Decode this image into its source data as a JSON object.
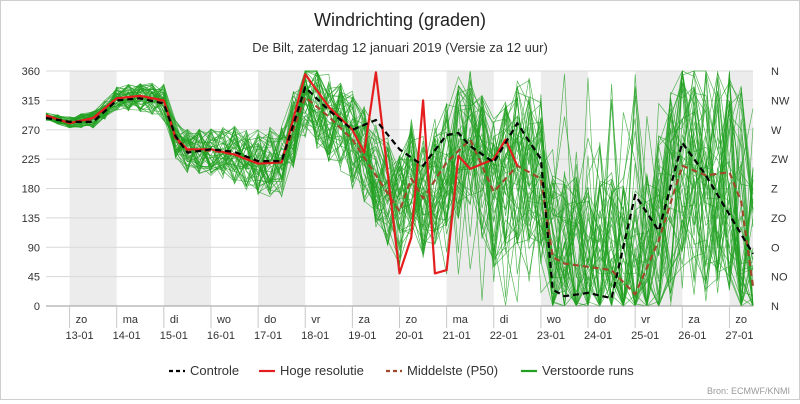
{
  "chart_data": {
    "type": "line",
    "title": "Windrichting (graden)",
    "subtitle": "De Bilt, zaterdag 12 januari 2019 (Versie za 12 uur)",
    "credit": "Bron: ECMWF/KNMI",
    "x_range": [
      "2019-01-12 12:00",
      "2019-01-27 12:00"
    ],
    "ylim": [
      0,
      360
    ],
    "grid": true,
    "legend_position": "bottom",
    "y_ticks": [
      0,
      45,
      90,
      135,
      180,
      225,
      270,
      315,
      360
    ],
    "y_right_labels": [
      "N",
      "NO",
      "O",
      "ZO",
      "Z",
      "ZW",
      "W",
      "NW",
      "N"
    ],
    "x_ticks": [
      {
        "day": "zo",
        "date": "13-01"
      },
      {
        "day": "ma",
        "date": "14-01"
      },
      {
        "day": "di",
        "date": "15-01"
      },
      {
        "day": "wo",
        "date": "16-01"
      },
      {
        "day": "do",
        "date": "17-01"
      },
      {
        "day": "vr",
        "date": "18-01"
      },
      {
        "day": "za",
        "date": "19-01"
      },
      {
        "day": "zo",
        "date": "20-01"
      },
      {
        "day": "ma",
        "date": "21-01"
      },
      {
        "day": "di",
        "date": "22-01"
      },
      {
        "day": "wo",
        "date": "23-01"
      },
      {
        "day": "do",
        "date": "24-01"
      },
      {
        "day": "vr",
        "date": "25-01"
      },
      {
        "day": "za",
        "date": "26-01"
      },
      {
        "day": "zo",
        "date": "27-01"
      }
    ],
    "series": [
      {
        "name": "Controle",
        "color": "#000000",
        "dash": "dashed",
        "points": [
          [
            "2019-01-12 12:00",
            288
          ],
          [
            "2019-01-13 00:00",
            282
          ],
          [
            "2019-01-13 12:00",
            282
          ],
          [
            "2019-01-14 00:00",
            315
          ],
          [
            "2019-01-14 12:00",
            318
          ],
          [
            "2019-01-15 00:00",
            310
          ],
          [
            "2019-01-15 06:00",
            260
          ],
          [
            "2019-01-15 12:00",
            235
          ],
          [
            "2019-01-16 00:00",
            240
          ],
          [
            "2019-01-16 12:00",
            236
          ],
          [
            "2019-01-17 00:00",
            222
          ],
          [
            "2019-01-17 12:00",
            222
          ],
          [
            "2019-01-18 00:00",
            335
          ],
          [
            "2019-01-18 12:00",
            300
          ],
          [
            "2019-01-19 00:00",
            270
          ],
          [
            "2019-01-19 12:00",
            285
          ],
          [
            "2019-01-20 00:00",
            240
          ],
          [
            "2019-01-20 12:00",
            215
          ],
          [
            "2019-01-21 00:00",
            262
          ],
          [
            "2019-01-21 06:00",
            265
          ],
          [
            "2019-01-21 12:00",
            245
          ],
          [
            "2019-01-22 00:00",
            220
          ],
          [
            "2019-01-22 12:00",
            280
          ],
          [
            "2019-01-23 00:00",
            225
          ],
          [
            "2019-01-23 06:00",
            25
          ],
          [
            "2019-01-23 12:00",
            15
          ],
          [
            "2019-01-24 00:00",
            20
          ],
          [
            "2019-01-24 12:00",
            12
          ],
          [
            "2019-01-25 00:00",
            170
          ],
          [
            "2019-01-25 12:00",
            115
          ],
          [
            "2019-01-26 00:00",
            250
          ],
          [
            "2019-01-26 12:00",
            200
          ],
          [
            "2019-01-27 00:00",
            140
          ],
          [
            "2019-01-27 12:00",
            80
          ]
        ]
      },
      {
        "name": "Hoge resolutie",
        "color": "#e41e1e",
        "dash": "solid",
        "points": [
          [
            "2019-01-12 12:00",
            292
          ],
          [
            "2019-01-13 00:00",
            280
          ],
          [
            "2019-01-13 12:00",
            288
          ],
          [
            "2019-01-14 00:00",
            318
          ],
          [
            "2019-01-14 12:00",
            322
          ],
          [
            "2019-01-15 00:00",
            315
          ],
          [
            "2019-01-15 06:00",
            258
          ],
          [
            "2019-01-15 12:00",
            240
          ],
          [
            "2019-01-16 00:00",
            240
          ],
          [
            "2019-01-16 12:00",
            232
          ],
          [
            "2019-01-17 00:00",
            218
          ],
          [
            "2019-01-17 12:00",
            220
          ],
          [
            "2019-01-18 00:00",
            355
          ],
          [
            "2019-01-18 12:00",
            305
          ],
          [
            "2019-01-19 00:00",
            270
          ],
          [
            "2019-01-19 06:00",
            235
          ],
          [
            "2019-01-19 12:00",
            358
          ],
          [
            "2019-01-20 00:00",
            50
          ],
          [
            "2019-01-20 06:00",
            105
          ],
          [
            "2019-01-20 12:00",
            315
          ],
          [
            "2019-01-20 18:00",
            50
          ],
          [
            "2019-01-21 00:00",
            55
          ],
          [
            "2019-01-21 06:00",
            230
          ],
          [
            "2019-01-21 12:00",
            210
          ],
          [
            "2019-01-22 00:00",
            225
          ],
          [
            "2019-01-22 06:00",
            255
          ],
          [
            "2019-01-22 12:00",
            215
          ]
        ]
      },
      {
        "name": "Middelste (P50)",
        "color": "#a0482c",
        "dash": "dashed",
        "points": [
          [
            "2019-01-12 12:00",
            290
          ],
          [
            "2019-01-13 00:00",
            282
          ],
          [
            "2019-01-13 12:00",
            285
          ],
          [
            "2019-01-14 00:00",
            318
          ],
          [
            "2019-01-14 12:00",
            320
          ],
          [
            "2019-01-15 00:00",
            312
          ],
          [
            "2019-01-15 06:00",
            255
          ],
          [
            "2019-01-15 12:00",
            238
          ],
          [
            "2019-01-16 00:00",
            238
          ],
          [
            "2019-01-16 12:00",
            232
          ],
          [
            "2019-01-17 00:00",
            220
          ],
          [
            "2019-01-17 12:00",
            222
          ],
          [
            "2019-01-18 00:00",
            320
          ],
          [
            "2019-01-18 12:00",
            290
          ],
          [
            "2019-01-19 00:00",
            255
          ],
          [
            "2019-01-19 12:00",
            200
          ],
          [
            "2019-01-20 00:00",
            145
          ],
          [
            "2019-01-20 06:00",
            195
          ],
          [
            "2019-01-20 12:00",
            165
          ],
          [
            "2019-01-21 00:00",
            220
          ],
          [
            "2019-01-21 12:00",
            255
          ],
          [
            "2019-01-22 00:00",
            175
          ],
          [
            "2019-01-22 12:00",
            215
          ],
          [
            "2019-01-23 00:00",
            195
          ],
          [
            "2019-01-23 06:00",
            75
          ],
          [
            "2019-01-23 12:00",
            65
          ],
          [
            "2019-01-24 00:00",
            60
          ],
          [
            "2019-01-24 12:00",
            55
          ],
          [
            "2019-01-25 00:00",
            18
          ],
          [
            "2019-01-25 12:00",
            100
          ],
          [
            "2019-01-26 00:00",
            215
          ],
          [
            "2019-01-26 12:00",
            200
          ],
          [
            "2019-01-27 00:00",
            205
          ],
          [
            "2019-01-27 06:00",
            160
          ],
          [
            "2019-01-27 12:00",
            30
          ]
        ]
      }
    ],
    "ensemble": {
      "name": "Verstoorde runs",
      "color": "#22a022",
      "member_count": 50
    }
  }
}
